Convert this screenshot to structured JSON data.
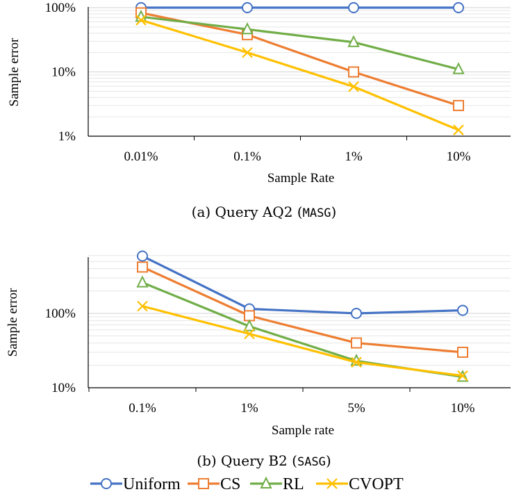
{
  "legend": [
    {
      "name": "Uniform",
      "color": "#4472C4",
      "marker": "circle"
    },
    {
      "name": "CS",
      "color": "#ED7D31",
      "marker": "square"
    },
    {
      "name": "RL",
      "color": "#70AD47",
      "marker": "triangle"
    },
    {
      "name": "CVOPT",
      "color": "#FFC000",
      "marker": "x"
    }
  ],
  "chart_data": [
    {
      "type": "line",
      "caption_prefix": "(a) Query AQ2 (",
      "caption_code": "MASG",
      "caption_suffix": ")",
      "xlabel": "Sample Rate",
      "ylabel": "Sample error",
      "yscale": "log",
      "ylim": [
        1,
        100
      ],
      "yticks": [
        1,
        10,
        100
      ],
      "ytick_labels": [
        "1%",
        "10%",
        "100%"
      ],
      "categories": [
        "0.01%",
        "0.1%",
        "1%",
        "10%"
      ],
      "grid": true,
      "series": [
        {
          "name": "Uniform",
          "values": [
            100,
            100,
            100,
            100
          ]
        },
        {
          "name": "CS",
          "values": [
            83,
            38,
            10,
            3.0
          ]
        },
        {
          "name": "RL",
          "values": [
            72,
            46,
            29,
            11
          ]
        },
        {
          "name": "CVOPT",
          "values": [
            64,
            20,
            5.9,
            1.25
          ]
        }
      ]
    },
    {
      "type": "line",
      "caption_prefix": "(b) Query B2 (",
      "caption_code": "SASG",
      "caption_suffix": ")",
      "xlabel": "Sample rate",
      "ylabel": "Sample error",
      "yscale": "log",
      "ylim": [
        10,
        600
      ],
      "yticks": [
        10,
        100
      ],
      "ytick_labels": [
        "10%",
        "100%"
      ],
      "categories": [
        "0.1%",
        "1%",
        "5%",
        "10%"
      ],
      "grid": true,
      "series": [
        {
          "name": "Uniform",
          "values": [
            590,
            115,
            100,
            110
          ]
        },
        {
          "name": "CS",
          "values": [
            420,
            93,
            40,
            30
          ]
        },
        {
          "name": "RL",
          "values": [
            260,
            67,
            23,
            14
          ]
        },
        {
          "name": "CVOPT",
          "values": [
            125,
            53,
            22,
            14.5
          ]
        }
      ]
    }
  ]
}
